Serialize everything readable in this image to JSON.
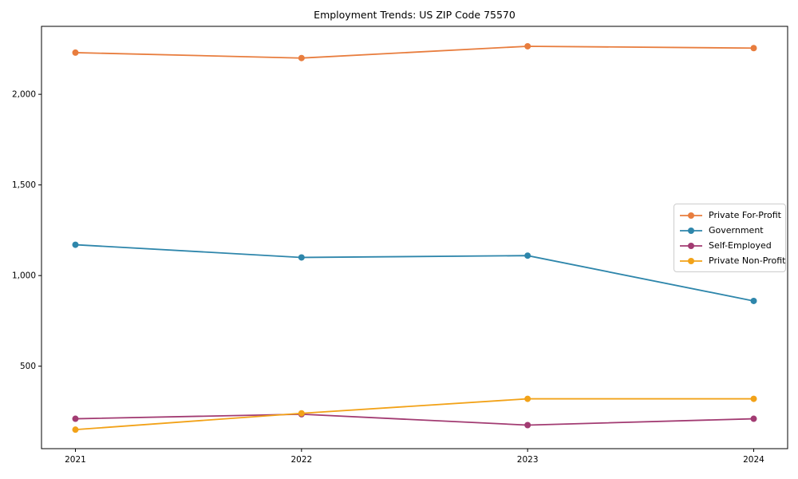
{
  "figure": {
    "title": "Employment Trends: US ZIP Code 75570"
  },
  "chart_data": {
    "type": "line",
    "title": "Employment Trends: US ZIP Code 75570",
    "xlabel": "",
    "ylabel": "",
    "categories": [
      "2021",
      "2022",
      "2023",
      "2024"
    ],
    "series": [
      {
        "name": "Private For-Profit",
        "color": "#E87D3E",
        "values": [
          2230,
          2200,
          2265,
          2255
        ]
      },
      {
        "name": "Government",
        "color": "#2E86AB",
        "values": [
          1170,
          1100,
          1110,
          860
        ]
      },
      {
        "name": "Self-Employed",
        "color": "#A23B72",
        "values": [
          210,
          235,
          175,
          210
        ]
      },
      {
        "name": "Private Non-Profit",
        "color": "#F2A218",
        "values": [
          150,
          240,
          320,
          320
        ]
      }
    ],
    "ylim": [
      45,
      2375
    ],
    "xlim": [
      -0.15,
      3.15
    ],
    "yticks": [
      500,
      1000,
      1500,
      2000
    ],
    "ytick_labels": [
      "500",
      "1,000",
      "1,500",
      "2,000"
    ],
    "grid": false,
    "legend_position": "right-center",
    "marker": "circle",
    "axis_color": "#000000"
  }
}
